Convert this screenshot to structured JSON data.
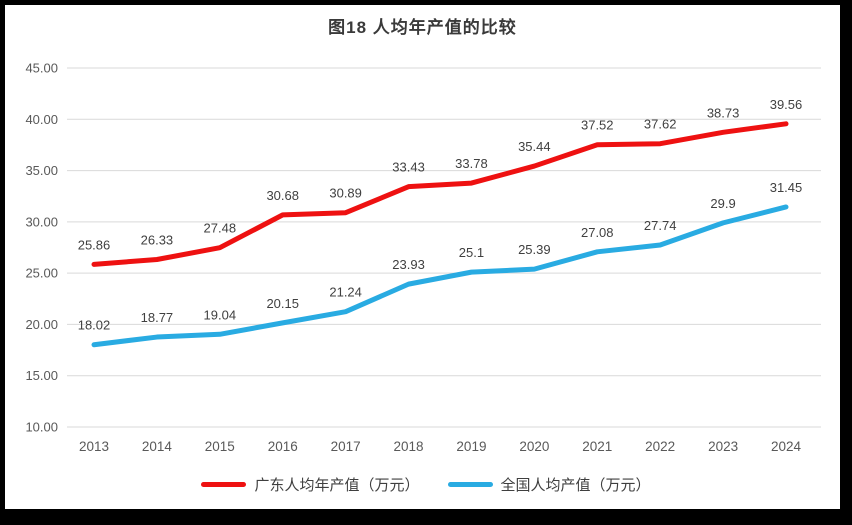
{
  "chart_data": {
    "type": "line",
    "title": "图18 人均年产值的比较",
    "categories": [
      "2013",
      "2014",
      "2015",
      "2016",
      "2017",
      "2018",
      "2019",
      "2020",
      "2021",
      "2022",
      "2023",
      "2024"
    ],
    "series": [
      {
        "id": "guangdong",
        "name": "广东人均年产值（万元）",
        "color": "#ee1111",
        "values": [
          25.86,
          26.33,
          27.48,
          30.68,
          30.89,
          33.43,
          33.78,
          35.44,
          37.52,
          37.62,
          38.73,
          39.56
        ]
      },
      {
        "id": "national",
        "name": "全国人均产值（万元）",
        "color": "#29abe2",
        "values": [
          18.02,
          18.77,
          19.04,
          20.15,
          21.24,
          23.93,
          25.1,
          25.39,
          27.08,
          27.74,
          29.9,
          31.45
        ]
      }
    ],
    "ylim": [
      10,
      45
    ],
    "ytick_step": 5,
    "ytick_labels": [
      "45.00",
      "40.00",
      "35.00",
      "30.00",
      "25.00",
      "20.00",
      "15.00",
      "10.00"
    ],
    "grid": true,
    "legend_position": "bottom",
    "data_labels": true
  },
  "colors": {
    "grid": "#d9d9d9",
    "axis_text": "#595959",
    "data_label_text": "#404040",
    "frame_border": "#000000"
  }
}
